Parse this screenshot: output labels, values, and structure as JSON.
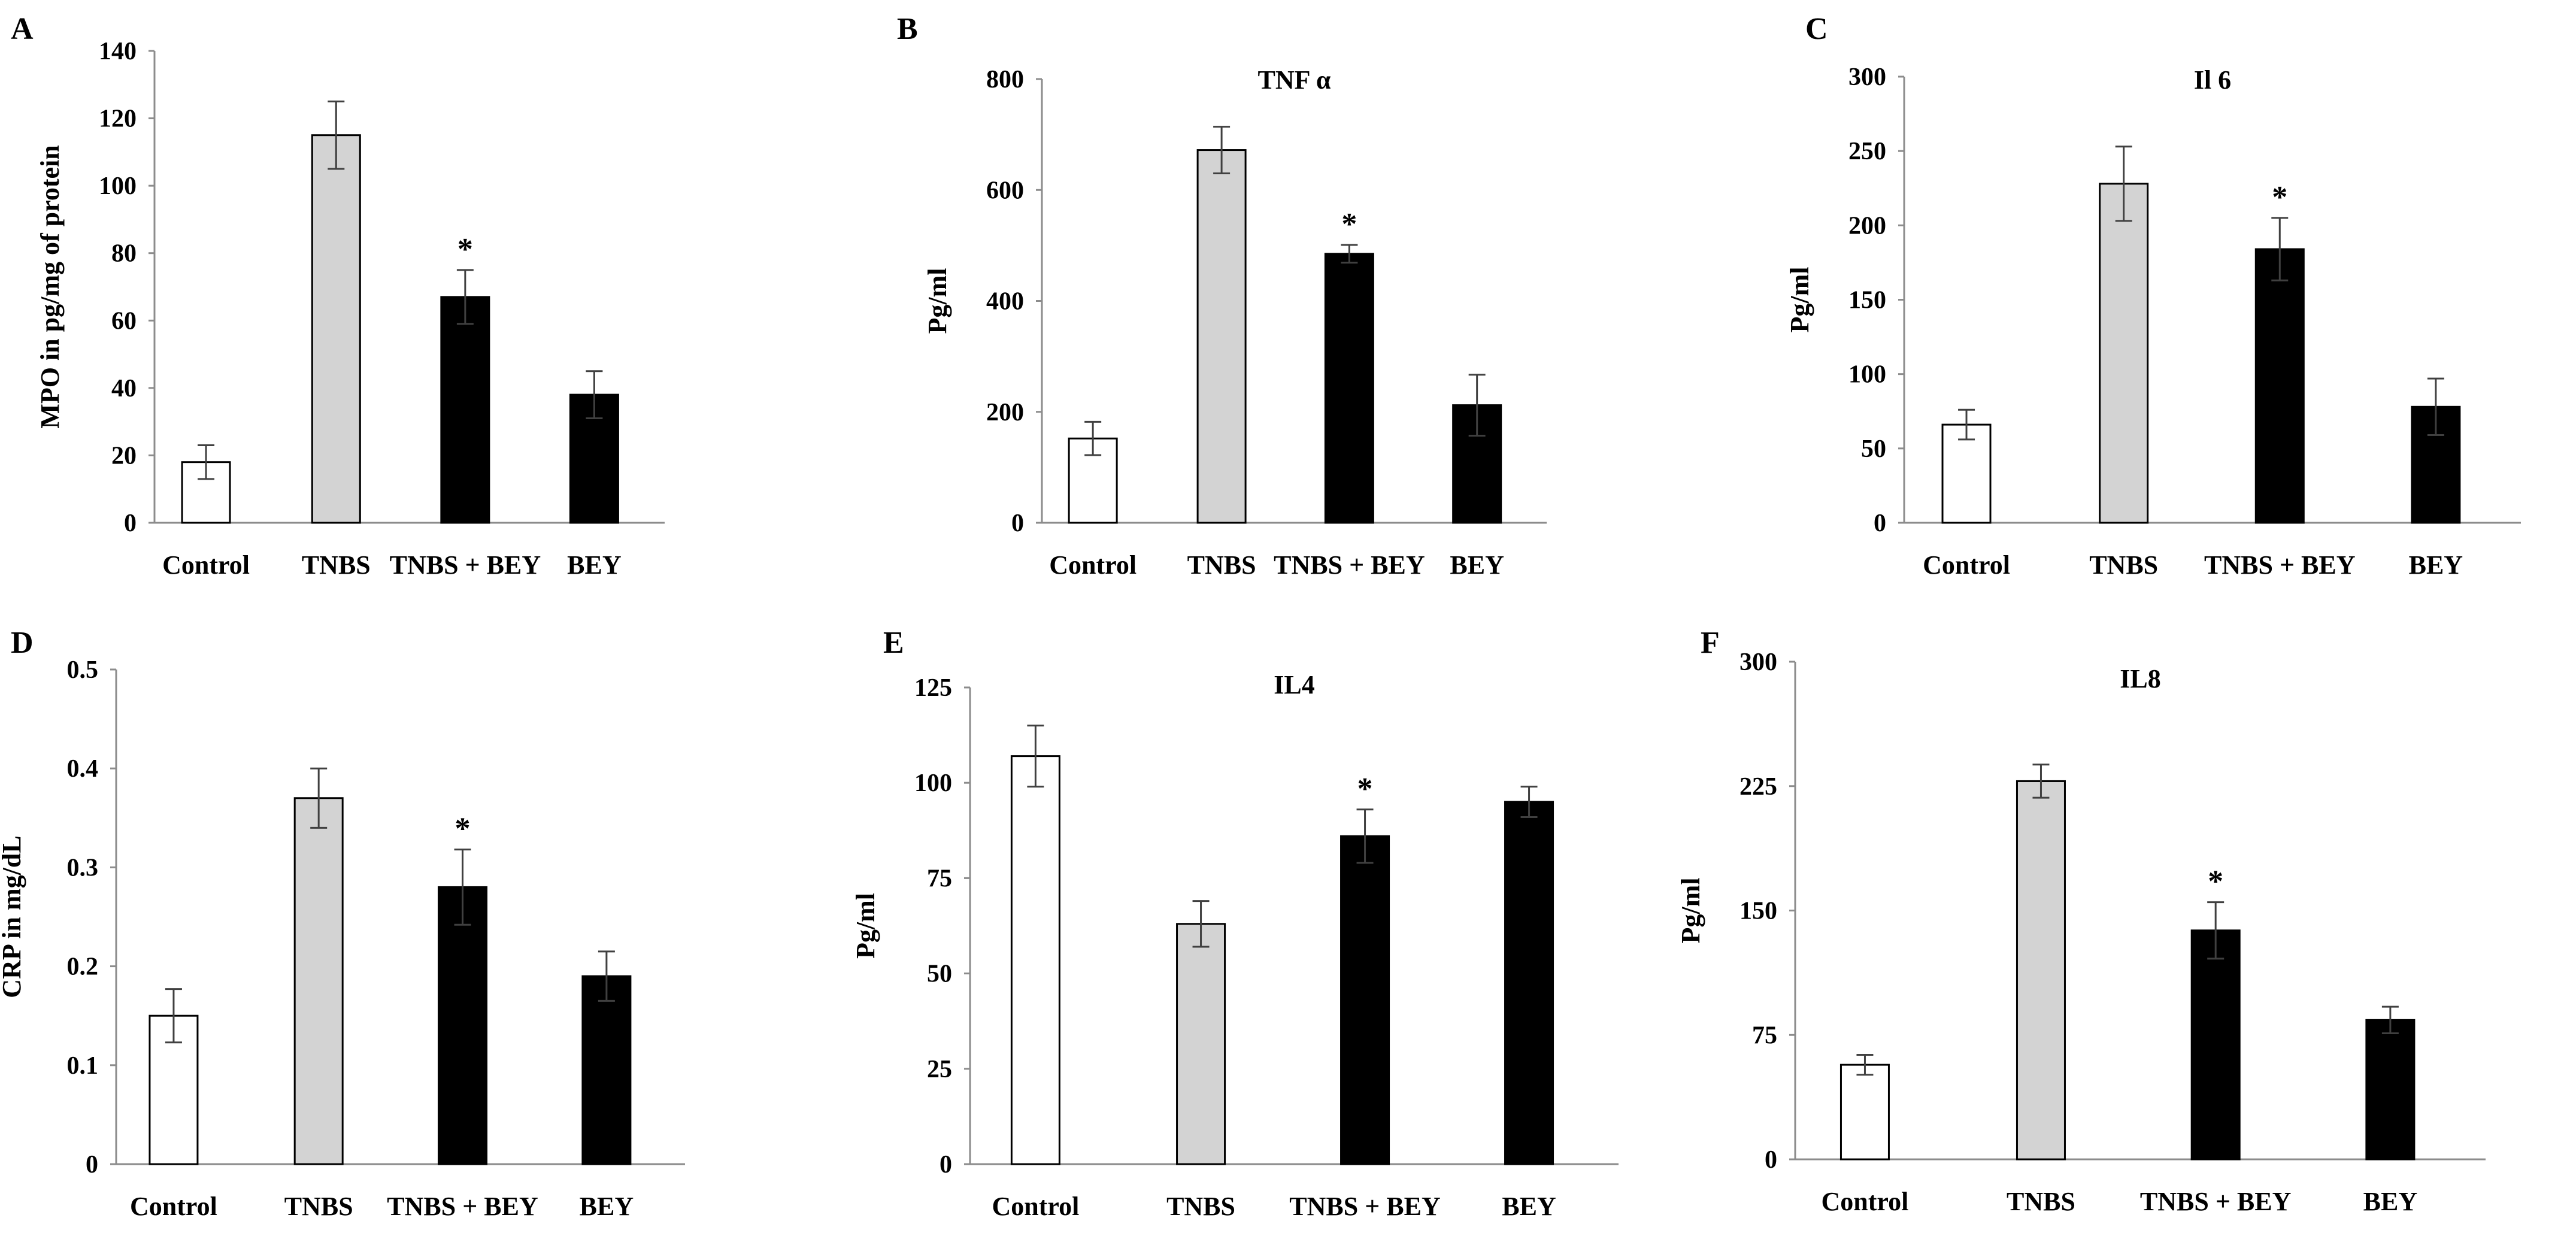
{
  "colors": {
    "bar_fills": [
      "#ffffff",
      "#d3d3d3",
      "#000000",
      "#000000"
    ],
    "bar_stroke": "#000000",
    "axis": "#8c8c8c",
    "text": "#000000",
    "error": "#404040"
  },
  "chart_data": [
    {
      "panel": "A",
      "type": "bar",
      "title": "",
      "ylabel": "MPO in pg/mg of protein",
      "xlabel": "",
      "categories": [
        "Control",
        "TNBS",
        "TNBS + BEY",
        "BEY"
      ],
      "values": [
        18,
        115,
        67,
        38
      ],
      "errors": [
        5,
        10,
        8,
        7
      ],
      "ylim": [
        0,
        140
      ],
      "yticks": [
        0,
        20,
        40,
        60,
        80,
        100,
        120,
        140
      ],
      "significance": [
        "",
        "",
        "*",
        ""
      ],
      "grid": false
    },
    {
      "panel": "B",
      "type": "bar",
      "title": "TNF α",
      "ylabel": "Pg/ml",
      "xlabel": "",
      "categories": [
        "Control",
        "TNBS",
        "TNBS + BEY",
        "BEY"
      ],
      "values": [
        152,
        672,
        485,
        212
      ],
      "errors": [
        30,
        42,
        16,
        55
      ],
      "ylim": [
        0,
        800
      ],
      "yticks": [
        0,
        200,
        400,
        600,
        800
      ],
      "significance": [
        "",
        "",
        "*",
        ""
      ],
      "grid": false
    },
    {
      "panel": "C",
      "type": "bar",
      "title": "Il 6",
      "ylabel": "Pg/ml",
      "xlabel": "",
      "categories": [
        "Control",
        "TNBS",
        "TNBS + BEY",
        "BEY"
      ],
      "values": [
        66,
        228,
        184,
        78
      ],
      "errors": [
        10,
        25,
        21,
        19
      ],
      "ylim": [
        0,
        300
      ],
      "yticks": [
        0,
        50,
        100,
        150,
        200,
        250,
        300
      ],
      "significance": [
        "",
        "",
        "*",
        ""
      ],
      "grid": false
    },
    {
      "panel": "D",
      "type": "bar",
      "title": "",
      "ylabel": "CRP in mg/dL",
      "xlabel": "",
      "categories": [
        "Control",
        "TNBS",
        "TNBS + BEY",
        "BEY"
      ],
      "values": [
        0.15,
        0.37,
        0.28,
        0.19
      ],
      "errors": [
        0.027,
        0.03,
        0.038,
        0.025
      ],
      "ylim": [
        0,
        0.5
      ],
      "yticks": [
        0,
        0.1,
        0.2,
        0.3,
        0.4,
        0.5
      ],
      "significance": [
        "",
        "",
        "*",
        ""
      ],
      "grid": false
    },
    {
      "panel": "E",
      "type": "bar",
      "title": "IL4",
      "ylabel": "Pg/ml",
      "xlabel": "",
      "categories": [
        "Control",
        "TNBS",
        "TNBS + BEY",
        "BEY"
      ],
      "values": [
        107,
        63,
        86,
        95
      ],
      "errors": [
        8,
        6,
        7,
        4
      ],
      "ylim": [
        0,
        125
      ],
      "yticks": [
        0,
        25,
        50,
        75,
        100,
        125
      ],
      "significance": [
        "",
        "",
        "*",
        ""
      ],
      "grid": false
    },
    {
      "panel": "F",
      "type": "bar",
      "title": "IL8",
      "ylabel": "Pg/ml",
      "xlabel": "",
      "categories": [
        "Control",
        "TNBS",
        "TNBS + BEY",
        "BEY"
      ],
      "values": [
        57,
        228,
        138,
        84
      ],
      "errors": [
        6,
        10,
        17,
        8
      ],
      "ylim": [
        0,
        300
      ],
      "yticks": [
        0,
        75,
        150,
        225,
        300
      ],
      "significance": [
        "",
        "",
        "*",
        ""
      ],
      "grid": false
    }
  ]
}
